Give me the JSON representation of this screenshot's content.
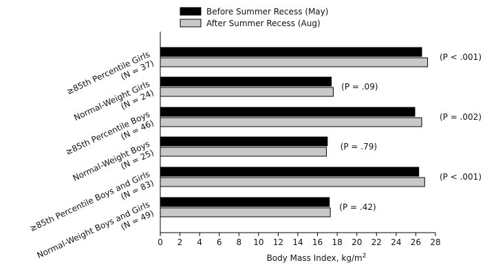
{
  "chart_data": {
    "type": "bar",
    "orientation": "horizontal",
    "xlabel": "Body Mass Index, kg/m",
    "xlabel_superscript": "2",
    "xlim": [
      0,
      28
    ],
    "xticks": [
      "0",
      "2",
      "4",
      "6",
      "8",
      "10",
      "12",
      "14",
      "16",
      "18",
      "20",
      "22",
      "24",
      "26",
      "28"
    ],
    "legend_position": "top",
    "categories": [
      {
        "line1": "≥85th Percentile Girls",
        "line2": "(N = 37)",
        "annotation": "(P < .001)"
      },
      {
        "line1": "Normal-Weight Girls",
        "line2": "(N = 24)",
        "annotation": "(P = .09)"
      },
      {
        "line1": "≥85th Percentile Boys",
        "line2": "(N = 46)",
        "annotation": "(P = .002)"
      },
      {
        "line1": "Normal-Weight Boys",
        "line2": "(N = 25)",
        "annotation": "(P = .79)"
      },
      {
        "line1": "≥85th Percentile Boys and Girls",
        "line2": "(N = 83)",
        "annotation": "(P < .001)"
      },
      {
        "line1": "Normal-Weight Boys and Girls",
        "line2": "(N = 49)",
        "annotation": "(P = .42)"
      }
    ],
    "series": [
      {
        "name": "Before Summer Recess (May)",
        "color": "#000000",
        "values": [
          26.6,
          17.4,
          25.9,
          17.0,
          26.3,
          17.2
        ]
      },
      {
        "name": "After Summer Recess (Aug)",
        "color": "#c8c8c8",
        "values": [
          27.2,
          17.6,
          26.6,
          16.9,
          26.9,
          17.3
        ]
      }
    ],
    "annotation_positions": [
      28.0,
      18.0,
      28.0,
      17.9,
      28.0,
      17.8
    ]
  }
}
